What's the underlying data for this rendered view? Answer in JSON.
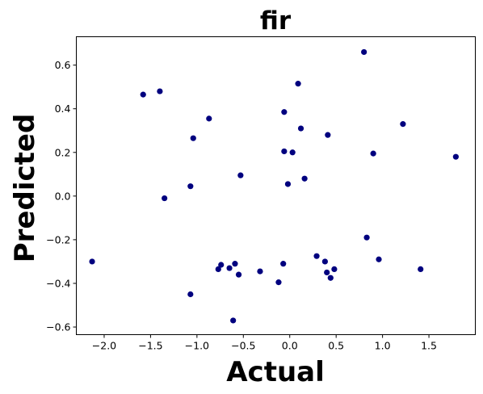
{
  "chart_data": {
    "type": "scatter",
    "title": "fir",
    "xlabel": "Actual",
    "ylabel": "Predicted",
    "xlim": [
      -2.3,
      2.0
    ],
    "ylim": [
      -0.635,
      0.73
    ],
    "xticks": [
      -2.0,
      -1.5,
      -1.0,
      -0.5,
      0.0,
      0.5,
      1.0,
      1.5
    ],
    "xtick_labels": [
      "−2.0",
      "−1.5",
      "−1.0",
      "−0.5",
      "0.0",
      "0.5",
      "1.0",
      "1.5"
    ],
    "yticks": [
      -0.6,
      -0.4,
      -0.2,
      0.0,
      0.2,
      0.4,
      0.6
    ],
    "ytick_labels": [
      "−0.6",
      "−0.4",
      "−0.2",
      "0.0",
      "0.2",
      "0.4",
      "0.6"
    ],
    "grid": false,
    "marker_color": "#00007f",
    "points": [
      {
        "x": -2.13,
        "y": -0.3
      },
      {
        "x": -1.58,
        "y": 0.465
      },
      {
        "x": -1.4,
        "y": 0.48
      },
      {
        "x": -1.35,
        "y": -0.01
      },
      {
        "x": -1.07,
        "y": 0.045
      },
      {
        "x": -1.04,
        "y": 0.265
      },
      {
        "x": -1.07,
        "y": -0.45
      },
      {
        "x": -0.87,
        "y": 0.355
      },
      {
        "x": -0.77,
        "y": -0.335
      },
      {
        "x": -0.74,
        "y": -0.315
      },
      {
        "x": -0.65,
        "y": -0.33
      },
      {
        "x": -0.59,
        "y": -0.31
      },
      {
        "x": -0.61,
        "y": -0.57
      },
      {
        "x": -0.55,
        "y": -0.36
      },
      {
        "x": -0.53,
        "y": 0.095
      },
      {
        "x": -0.32,
        "y": -0.345
      },
      {
        "x": -0.12,
        "y": -0.395
      },
      {
        "x": -0.07,
        "y": -0.31
      },
      {
        "x": -0.06,
        "y": 0.385
      },
      {
        "x": -0.06,
        "y": 0.205
      },
      {
        "x": -0.02,
        "y": 0.055
      },
      {
        "x": 0.03,
        "y": 0.2
      },
      {
        "x": 0.09,
        "y": 0.515
      },
      {
        "x": 0.12,
        "y": 0.31
      },
      {
        "x": 0.16,
        "y": 0.08
      },
      {
        "x": 0.29,
        "y": -0.275
      },
      {
        "x": 0.38,
        "y": -0.3
      },
      {
        "x": 0.4,
        "y": -0.35
      },
      {
        "x": 0.41,
        "y": 0.28
      },
      {
        "x": 0.44,
        "y": -0.375
      },
      {
        "x": 0.48,
        "y": -0.335
      },
      {
        "x": 0.8,
        "y": 0.66
      },
      {
        "x": 0.83,
        "y": -0.19
      },
      {
        "x": 0.9,
        "y": 0.195
      },
      {
        "x": 0.96,
        "y": -0.29
      },
      {
        "x": 1.22,
        "y": 0.33
      },
      {
        "x": 1.41,
        "y": -0.335
      },
      {
        "x": 1.79,
        "y": 0.18
      }
    ]
  }
}
